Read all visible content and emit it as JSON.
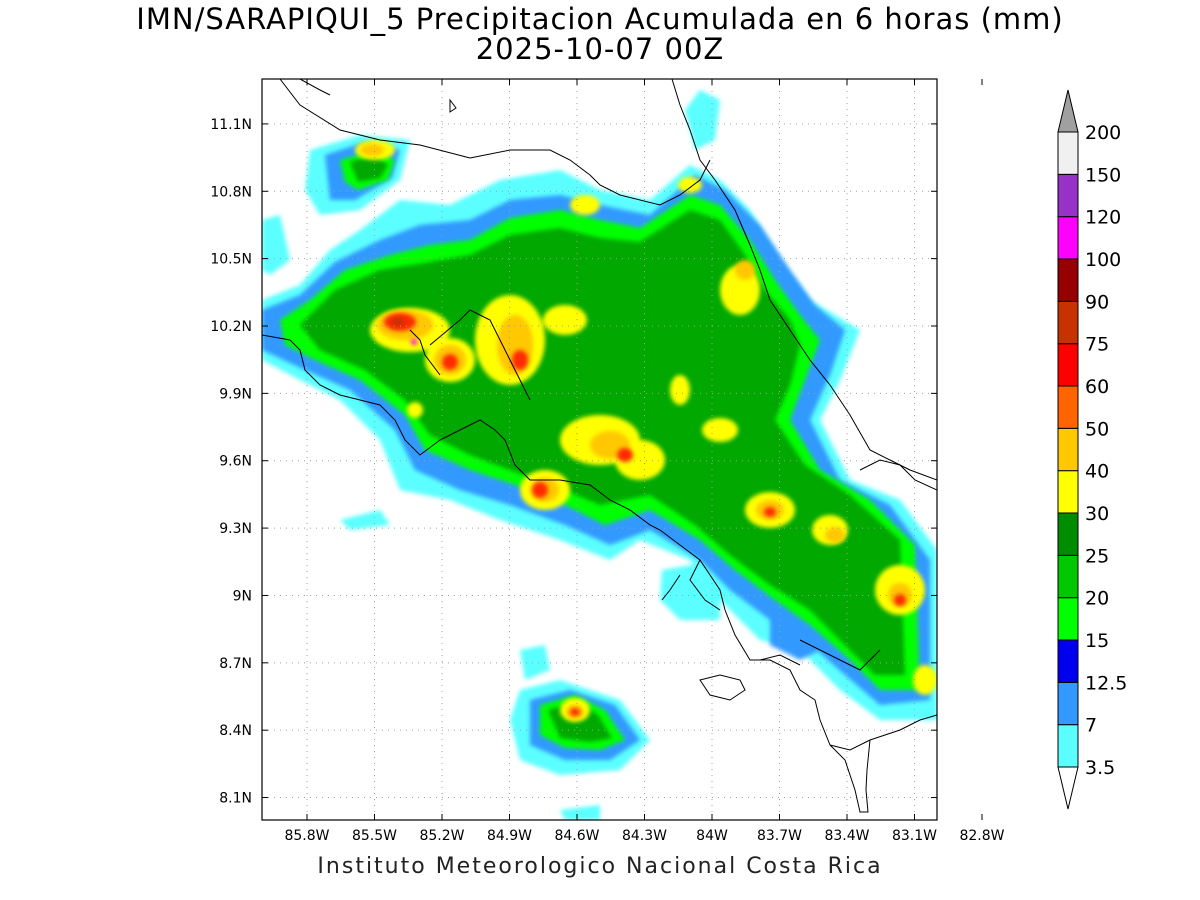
{
  "title": "IMN/SARAPIQUI_5 Precipitacion Acumulada en 6 horas (mm)",
  "subtitle": "2025-10-07 00Z",
  "footer": "Instituto Meteorologico Nacional Costa Rica",
  "map": {
    "lon_range": [
      -86.0,
      -83.0
    ],
    "lat_range": [
      8.0,
      11.3
    ],
    "lon_ticks": [
      {
        "value": -85.8,
        "label": "85.8W"
      },
      {
        "value": -85.5,
        "label": "85.5W"
      },
      {
        "value": -85.2,
        "label": "85.2W"
      },
      {
        "value": -84.9,
        "label": "84.9W"
      },
      {
        "value": -84.6,
        "label": "84.6W"
      },
      {
        "value": -84.3,
        "label": "84.3W"
      },
      {
        "value": -84.0,
        "label": "84W"
      },
      {
        "value": -83.7,
        "label": "83.7W"
      },
      {
        "value": -83.4,
        "label": "83.4W"
      },
      {
        "value": -83.1,
        "label": "83.1W"
      },
      {
        "value": -82.8,
        "label": "82.8W"
      }
    ],
    "lat_ticks": [
      {
        "value": 11.1,
        "label": "11.1N"
      },
      {
        "value": 10.8,
        "label": "10.8N"
      },
      {
        "value": 10.5,
        "label": "10.5N"
      },
      {
        "value": 10.2,
        "label": "10.2N"
      },
      {
        "value": 9.9,
        "label": "9.9N"
      },
      {
        "value": 9.6,
        "label": "9.6N"
      },
      {
        "value": 9.3,
        "label": "9.3N"
      },
      {
        "value": 9.0,
        "label": "9N"
      },
      {
        "value": 8.7,
        "label": "8.7N"
      },
      {
        "value": 8.4,
        "label": "8.4N"
      },
      {
        "value": 8.1,
        "label": "8.1N"
      }
    ],
    "grid": true
  },
  "colorbar": {
    "labels": [
      "3.5",
      "7",
      "12.5",
      "15",
      "20",
      "25",
      "30",
      "40",
      "50",
      "60",
      "75",
      "90",
      "100",
      "120",
      "150",
      "200"
    ],
    "colors": [
      "#ffffff",
      "#5cffff",
      "#3399ff",
      "#0000ee",
      "#00ff00",
      "#00c800",
      "#008c00",
      "#ffff00",
      "#ffc800",
      "#ff6400",
      "#ff0000",
      "#c83200",
      "#960000",
      "#ff00ff",
      "#9632c8",
      "#f0f0f0",
      "#a0a0a0"
    ]
  }
}
